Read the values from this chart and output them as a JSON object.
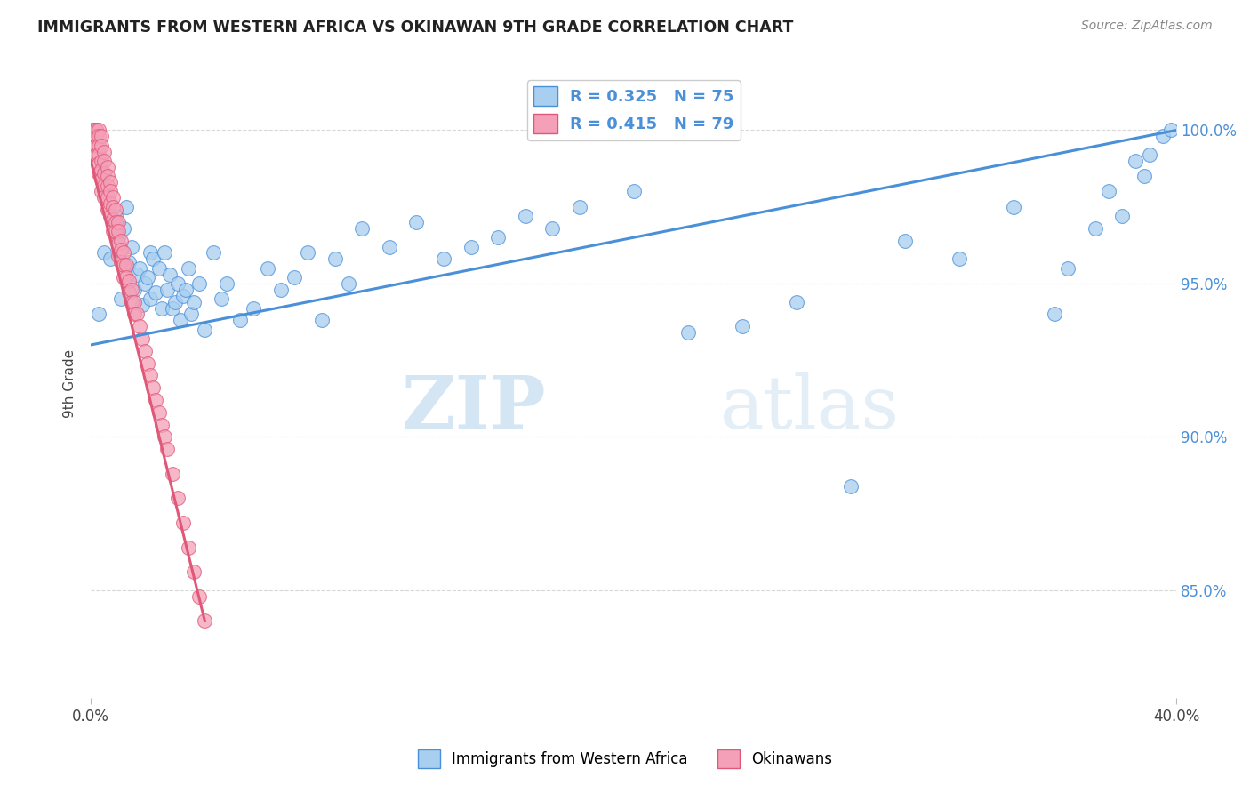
{
  "title": "IMMIGRANTS FROM WESTERN AFRICA VS OKINAWAN 9TH GRADE CORRELATION CHART",
  "source": "Source: ZipAtlas.com",
  "ylabel": "9th Grade",
  "x_min": 0.0,
  "x_max": 0.4,
  "y_min": 0.815,
  "y_max": 1.02,
  "y_ticks": [
    0.85,
    0.9,
    0.95,
    1.0
  ],
  "y_tick_labels": [
    "85.0%",
    "90.0%",
    "95.0%",
    "100.0%"
  ],
  "blue_R": 0.325,
  "blue_N": 75,
  "pink_R": 0.415,
  "pink_N": 79,
  "blue_color": "#A8CEF0",
  "pink_color": "#F4A0B8",
  "blue_line_color": "#4A90D9",
  "pink_line_color": "#E05878",
  "legend_blue_label": "Immigrants from Western Africa",
  "legend_pink_label": "Okinawans",
  "watermark_zip": "ZIP",
  "watermark_atlas": "atlas",
  "background_color": "#ffffff",
  "grid_color": "#d8d8d8",
  "blue_x": [
    0.003,
    0.005,
    0.007,
    0.009,
    0.01,
    0.011,
    0.012,
    0.013,
    0.014,
    0.015,
    0.016,
    0.017,
    0.018,
    0.019,
    0.02,
    0.021,
    0.022,
    0.022,
    0.023,
    0.024,
    0.025,
    0.026,
    0.027,
    0.028,
    0.029,
    0.03,
    0.031,
    0.032,
    0.033,
    0.034,
    0.035,
    0.036,
    0.037,
    0.038,
    0.04,
    0.042,
    0.045,
    0.048,
    0.05,
    0.055,
    0.06,
    0.065,
    0.07,
    0.075,
    0.08,
    0.085,
    0.09,
    0.095,
    0.1,
    0.11,
    0.12,
    0.13,
    0.14,
    0.15,
    0.16,
    0.17,
    0.18,
    0.2,
    0.22,
    0.24,
    0.26,
    0.28,
    0.3,
    0.32,
    0.34,
    0.355,
    0.36,
    0.37,
    0.375,
    0.38,
    0.385,
    0.388,
    0.39,
    0.395,
    0.398
  ],
  "blue_y": [
    0.94,
    0.96,
    0.958,
    0.972,
    0.965,
    0.945,
    0.968,
    0.975,
    0.957,
    0.962,
    0.948,
    0.953,
    0.955,
    0.943,
    0.95,
    0.952,
    0.96,
    0.945,
    0.958,
    0.947,
    0.955,
    0.942,
    0.96,
    0.948,
    0.953,
    0.942,
    0.944,
    0.95,
    0.938,
    0.946,
    0.948,
    0.955,
    0.94,
    0.944,
    0.95,
    0.935,
    0.96,
    0.945,
    0.95,
    0.938,
    0.942,
    0.955,
    0.948,
    0.952,
    0.96,
    0.938,
    0.958,
    0.95,
    0.968,
    0.962,
    0.97,
    0.958,
    0.962,
    0.965,
    0.972,
    0.968,
    0.975,
    0.98,
    0.934,
    0.936,
    0.944,
    0.884,
    0.964,
    0.958,
    0.975,
    0.94,
    0.955,
    0.968,
    0.98,
    0.972,
    0.99,
    0.985,
    0.992,
    0.998,
    1.0
  ],
  "pink_x": [
    0.001,
    0.001,
    0.001,
    0.001,
    0.002,
    0.002,
    0.002,
    0.002,
    0.002,
    0.003,
    0.003,
    0.003,
    0.003,
    0.003,
    0.003,
    0.004,
    0.004,
    0.004,
    0.004,
    0.004,
    0.004,
    0.005,
    0.005,
    0.005,
    0.005,
    0.005,
    0.006,
    0.006,
    0.006,
    0.006,
    0.006,
    0.007,
    0.007,
    0.007,
    0.007,
    0.008,
    0.008,
    0.008,
    0.008,
    0.009,
    0.009,
    0.009,
    0.01,
    0.01,
    0.01,
    0.01,
    0.011,
    0.011,
    0.011,
    0.012,
    0.012,
    0.012,
    0.013,
    0.013,
    0.014,
    0.014,
    0.015,
    0.015,
    0.016,
    0.016,
    0.017,
    0.018,
    0.019,
    0.02,
    0.021,
    0.022,
    0.023,
    0.024,
    0.025,
    0.026,
    0.027,
    0.028,
    0.03,
    0.032,
    0.034,
    0.036,
    0.038,
    0.04,
    0.042
  ],
  "pink_y": [
    1.0,
    1.0,
    1.0,
    1.0,
    1.0,
    1.0,
    0.998,
    0.995,
    0.992,
    1.0,
    0.998,
    0.995,
    0.992,
    0.989,
    0.986,
    0.998,
    0.995,
    0.99,
    0.987,
    0.984,
    0.98,
    0.993,
    0.99,
    0.986,
    0.982,
    0.978,
    0.988,
    0.985,
    0.982,
    0.978,
    0.974,
    0.983,
    0.98,
    0.976,
    0.972,
    0.978,
    0.975,
    0.971,
    0.967,
    0.974,
    0.97,
    0.967,
    0.97,
    0.967,
    0.963,
    0.959,
    0.964,
    0.961,
    0.957,
    0.96,
    0.956,
    0.952,
    0.956,
    0.952,
    0.951,
    0.947,
    0.948,
    0.944,
    0.944,
    0.94,
    0.94,
    0.936,
    0.932,
    0.928,
    0.924,
    0.92,
    0.916,
    0.912,
    0.908,
    0.904,
    0.9,
    0.896,
    0.888,
    0.88,
    0.872,
    0.864,
    0.856,
    0.848,
    0.84
  ],
  "blue_line_x0": 0.0,
  "blue_line_x1": 0.4,
  "blue_line_y0": 0.93,
  "blue_line_y1": 1.0,
  "pink_line_x0": 0.0,
  "pink_line_x1": 0.042,
  "pink_line_y0": 0.99,
  "pink_line_y1": 0.84
}
